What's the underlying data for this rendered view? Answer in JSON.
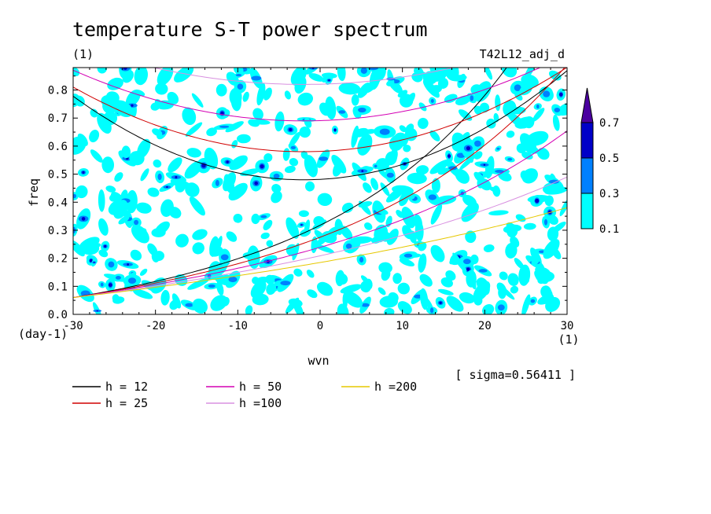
{
  "chart_data": {
    "type": "contour",
    "title": "temperature S-T power spectrum",
    "subtitle_left": "(1)",
    "subtitle_right": "T42L12_adj_d",
    "xlabel": "wvn",
    "ylabel": "freq",
    "x_unit": "(1)",
    "y_unit": "(day-1)",
    "xlim": [
      -30,
      30
    ],
    "ylim": [
      0,
      0.88
    ],
    "xticks": [
      -30,
      -20,
      -10,
      0,
      10,
      20,
      30
    ],
    "yticks": [
      0.0,
      0.1,
      0.2,
      0.3,
      0.4,
      0.5,
      0.6,
      0.7,
      0.8
    ],
    "sigma_text": "[ sigma=0.56411 ]",
    "colorbar": {
      "levels": [
        "0.1",
        "0.3",
        "0.5",
        "0.7"
      ],
      "colors": [
        "#00ffff",
        "#0080ff",
        "#0000c8",
        "#4b00a0"
      ]
    },
    "dispersion_curves": [
      {
        "label": "h = 12",
        "h": 12,
        "color": "#000000"
      },
      {
        "label": "h = 25",
        "h": 25,
        "color": "#d00000"
      },
      {
        "label": "h = 50",
        "h": 50,
        "color": "#d400b4"
      },
      {
        "label": "h =100",
        "h": 100,
        "color": "#d890e0"
      },
      {
        "label": "h =200",
        "h": 200,
        "color": "#e6c800"
      }
    ],
    "curve_minima": [
      {
        "h": 12,
        "x": -2,
        "y": 0.48
      },
      {
        "h": 25,
        "x": -2,
        "y": 0.58
      },
      {
        "h": 50,
        "x": -2,
        "y": 0.69
      },
      {
        "h": 100,
        "x": -2,
        "y": 0.82
      }
    ],
    "grid": false
  }
}
